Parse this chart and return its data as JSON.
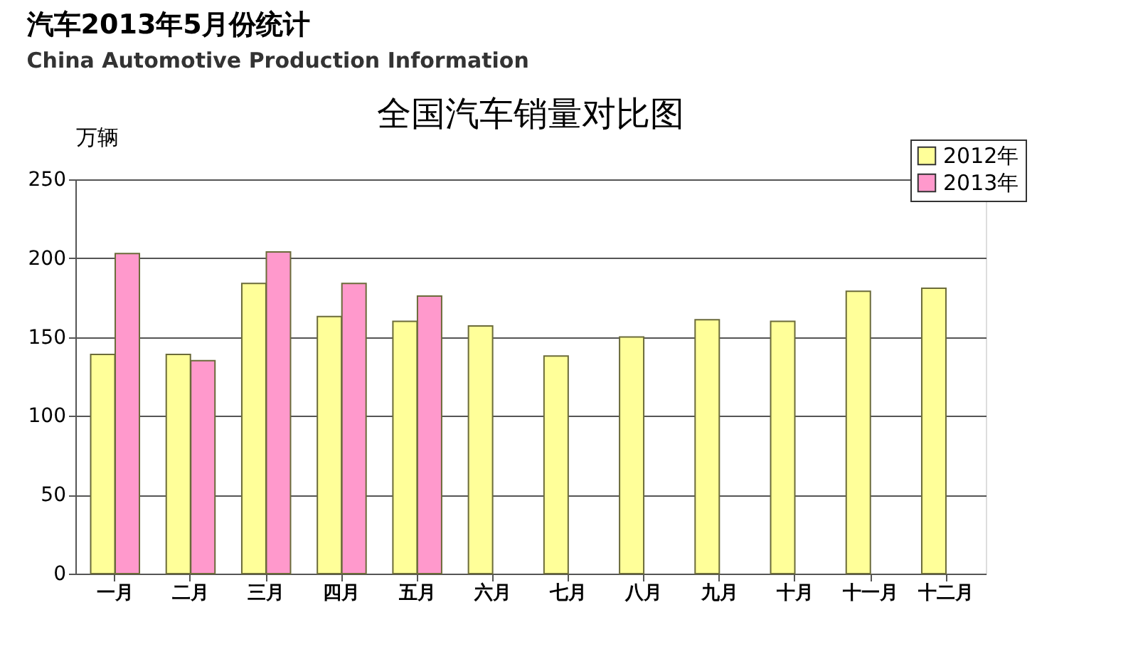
{
  "chart_data": {
    "type": "bar",
    "title": "全国汽车销量对比图",
    "ylabel": "万辆",
    "annotations": [
      "汽车2013年5月份统计",
      "China Automotive Production Information"
    ],
    "categories": [
      "一月",
      "二月",
      "三月",
      "四月",
      "五月",
      "六月",
      "七月",
      "八月",
      "九月",
      "十月",
      "十一月",
      "十二月"
    ],
    "series": [
      {
        "name": "2012年",
        "color": "#ffff99",
        "values": [
          139,
          139,
          184,
          163,
          160,
          157,
          138,
          150,
          161,
          160,
          179,
          181
        ]
      },
      {
        "name": "2013年",
        "color": "#ff99cc",
        "values": [
          203,
          135,
          204,
          184,
          176,
          null,
          null,
          null,
          null,
          null,
          null,
          null
        ]
      }
    ],
    "ylim": [
      0,
      250
    ],
    "yticks": [
      0,
      50,
      100,
      150,
      200,
      250
    ],
    "grid": "y",
    "legend": "top right"
  }
}
